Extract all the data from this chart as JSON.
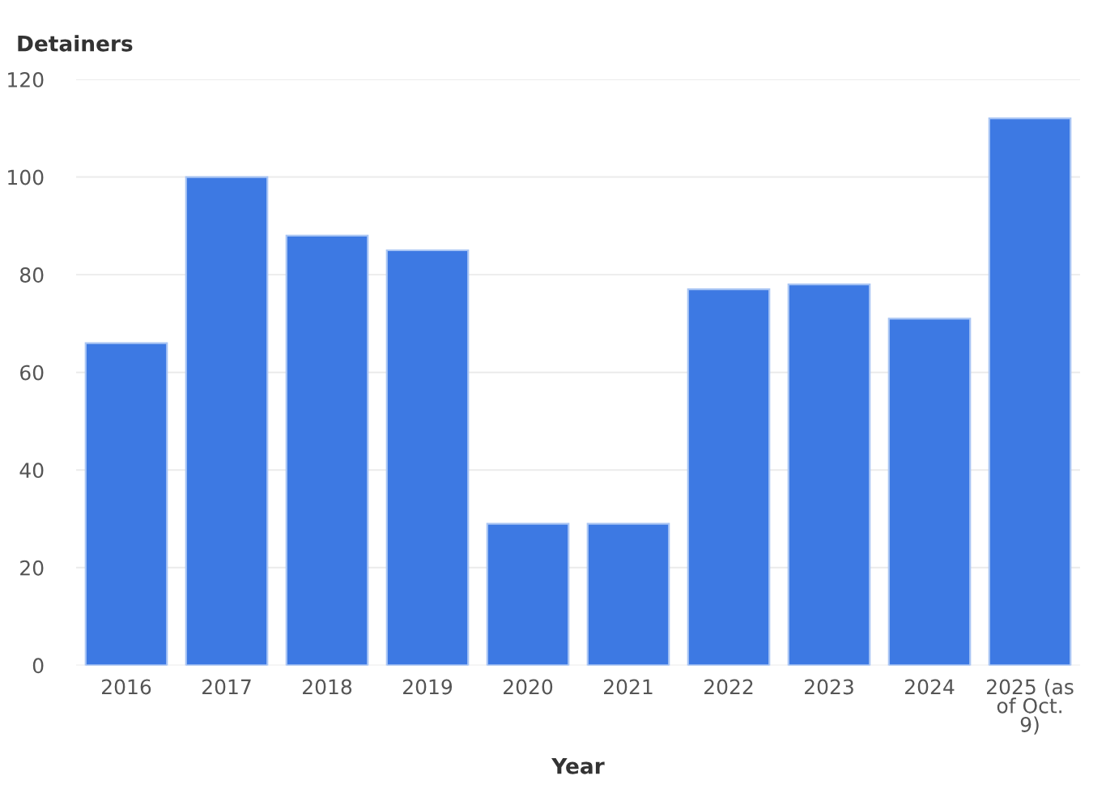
{
  "chart_data": {
    "type": "bar",
    "xlabel": "Year",
    "ylabel": "Detainers",
    "categories": [
      "2016",
      "2017",
      "2018",
      "2019",
      "2020",
      "2021",
      "2022",
      "2023",
      "2024",
      "2025 (as of Oct. 9)"
    ],
    "values": [
      66,
      100,
      88,
      85,
      29,
      29,
      77,
      78,
      71,
      112
    ],
    "color": "#3d79e3",
    "ylim": [
      0,
      120
    ],
    "yticks": [
      0,
      20,
      40,
      60,
      80,
      100,
      120
    ],
    "grid": "y"
  }
}
